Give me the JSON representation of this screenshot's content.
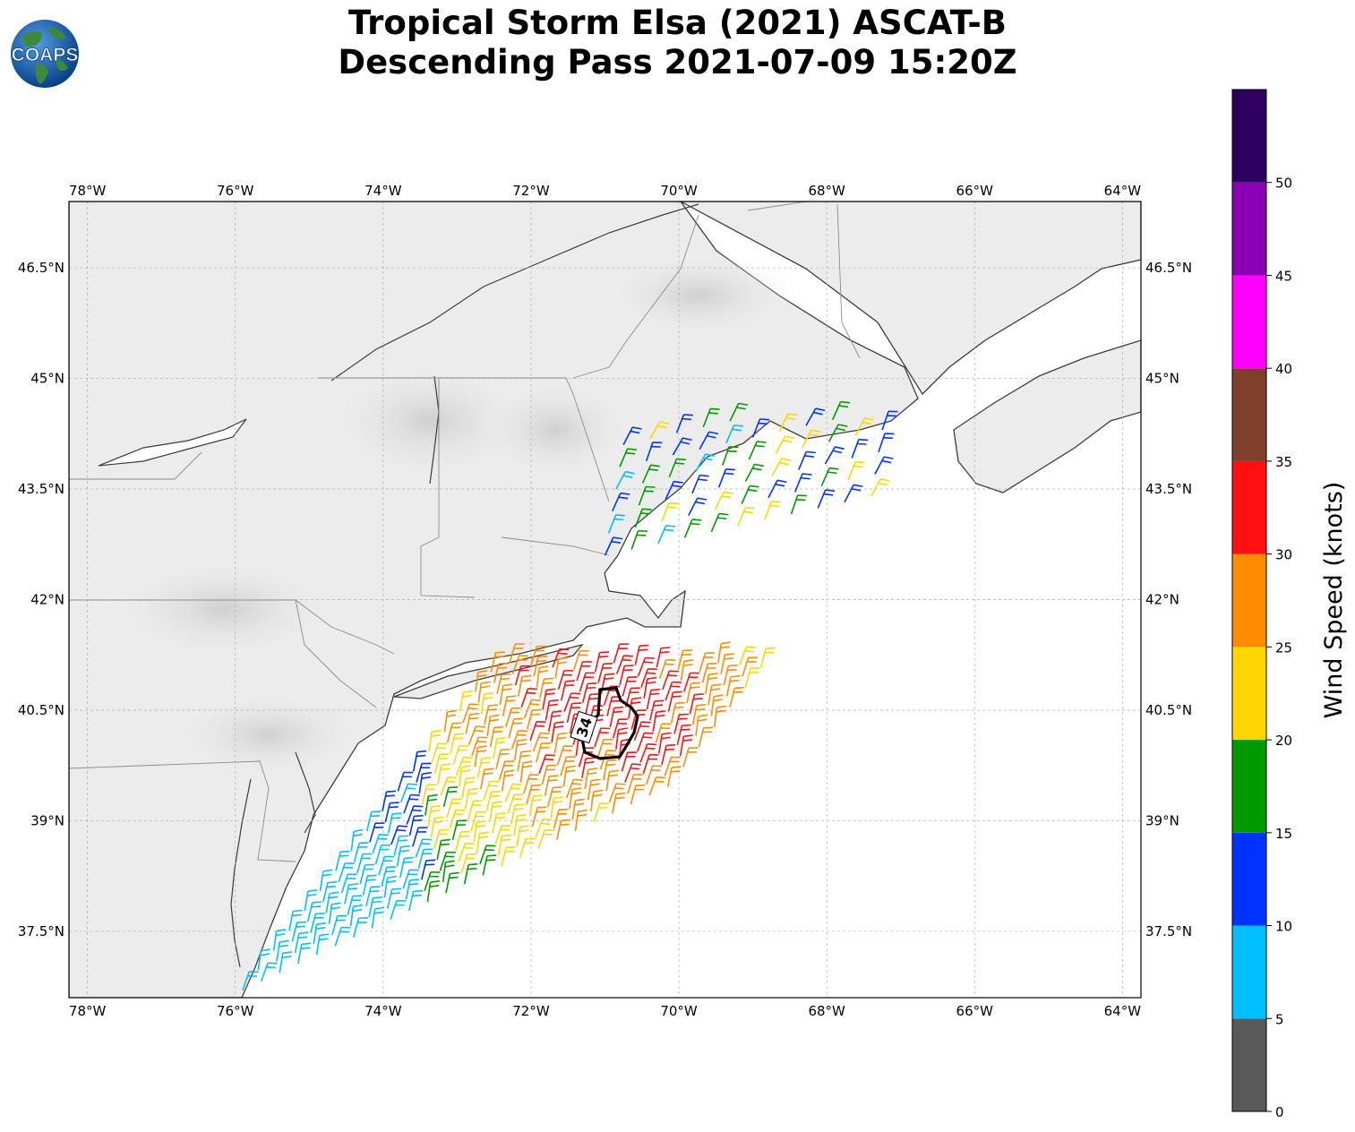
{
  "title": {
    "line1": "Tropical Storm Elsa (2021) ASCAT-B",
    "line2": "Descending Pass 2021-07-09 15:20Z"
  },
  "logo": {
    "text": "COAPS",
    "icon": "globe-icon"
  },
  "map": {
    "lon_range": [
      -78.25,
      -63.75
    ],
    "lat_range": [
      36.6,
      47.4
    ],
    "lon_ticks": [
      -78,
      -76,
      -74,
      -72,
      -70,
      -68,
      -66,
      -64
    ],
    "lon_tick_labels": [
      "78°W",
      "76°W",
      "74°W",
      "72°W",
      "70°W",
      "68°W",
      "66°W",
      "64°W"
    ],
    "lat_ticks": [
      37.5,
      39,
      40.5,
      42,
      43.5,
      45,
      46.5
    ],
    "lat_tick_labels": [
      "37.5°N",
      "39°N",
      "40.5°N",
      "42°N",
      "43.5°N",
      "45°N",
      "46.5°N"
    ],
    "gridlines": true,
    "contour": {
      "label": "34",
      "units": "knots",
      "color": "#000000"
    }
  },
  "colorbar": {
    "label": "Wind Speed (knots)",
    "ticks": [
      0,
      5,
      10,
      15,
      20,
      25,
      30,
      35,
      40,
      45,
      50
    ],
    "tick_labels": [
      "0",
      "5",
      "10",
      "15",
      "20",
      "25",
      "30",
      "35",
      "40",
      "45",
      "50"
    ],
    "colors": [
      "#595959",
      "#00bfff",
      "#0033ff",
      "#009900",
      "#ffd700",
      "#ff8c00",
      "#ff1010",
      "#7f3f2b",
      "#ff00ff",
      "#8b00b5",
      "#2d0060"
    ],
    "range": [
      0,
      55
    ]
  },
  "wind_regions": [
    {
      "name": "gulf-of-maine",
      "lon_range": [
        -71.0,
        -67.3
      ],
      "lat_range": [
        42.6,
        44.4
      ],
      "colors": [
        "#00bfff",
        "#0033ff",
        "#009900",
        "#ffd700",
        "#ff8c00"
      ]
    },
    {
      "name": "offshore-south",
      "lon_range": [
        -76.0,
        -68.5
      ],
      "lat_range": [
        36.6,
        41.1
      ]
    }
  ]
}
